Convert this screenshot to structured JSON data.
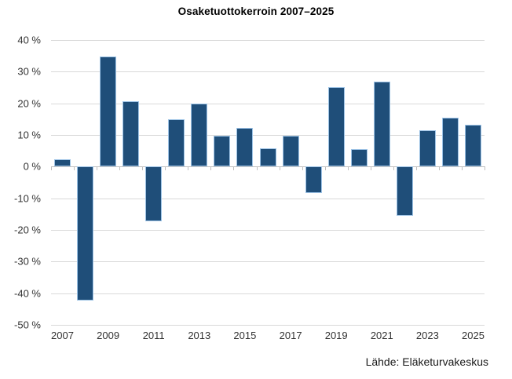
{
  "title": "Osaketuottokerroin 2007–2025",
  "source": "Lähde: Eläketurvakeskus",
  "chart_data": {
    "type": "bar",
    "title": "Osaketuottokerroin 2007–2025",
    "categories": [
      2007,
      2008,
      2009,
      2010,
      2011,
      2012,
      2013,
      2014,
      2015,
      2016,
      2017,
      2018,
      2019,
      2020,
      2021,
      2022,
      2023,
      2024,
      2025
    ],
    "values": [
      2.2,
      -42.3,
      34.7,
      20.7,
      -17.4,
      15.0,
      20.0,
      9.7,
      12.3,
      5.8,
      9.7,
      -8.5,
      25.1,
      5.6,
      26.8,
      -15.5,
      11.4,
      15.4,
      13.3
    ],
    "x_tick_labels": [
      "2007",
      "2009",
      "2011",
      "2013",
      "2015",
      "2017",
      "2019",
      "2021",
      "2023",
      "2025"
    ],
    "y_ticks": [
      40,
      30,
      20,
      10,
      0,
      -10,
      -20,
      -30,
      -40,
      -50
    ],
    "y_tick_suffix": " %",
    "ylim": [
      -50,
      40
    ],
    "xlabel": "",
    "ylabel": "",
    "grid": true,
    "legend": false,
    "bar_color": "#1f4e79",
    "bar_border_color": "#9dc3e6",
    "gridline_color": "#d9d9d9",
    "axis_color": "#bfbfbf",
    "source_label": "Lähde: Eläketurvakeskus"
  }
}
